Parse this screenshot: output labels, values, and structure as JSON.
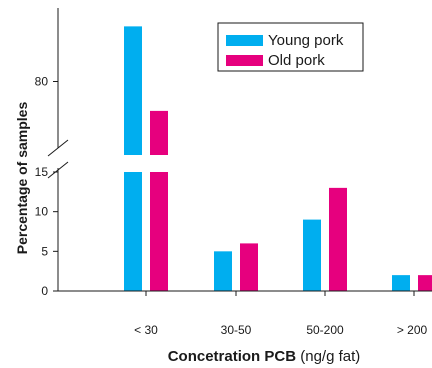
{
  "chart_data": {
    "type": "bar",
    "categories": [
      "< 30",
      "30-50",
      "50-200",
      "> 200"
    ],
    "series": [
      {
        "name": "Young pork",
        "color": "#00aeef",
        "values": [
          95,
          5,
          9,
          2
        ]
      },
      {
        "name": "Old pork",
        "color": "#e6007e",
        "values": [
          72,
          6,
          13,
          2
        ]
      }
    ],
    "xlabel_bold": "Concetration PCB",
    "xlabel_rest": "(ng/g fat)",
    "ylabel": "Percentage of samples",
    "y_ticks_lower": [
      0,
      5,
      10,
      15
    ],
    "y_ticks_upper": [
      80
    ],
    "ylim_lower": [
      0,
      15
    ],
    "ylim_upper": [
      60,
      100
    ],
    "axis_break": true,
    "legend_position": "top-right",
    "grid": false
  }
}
